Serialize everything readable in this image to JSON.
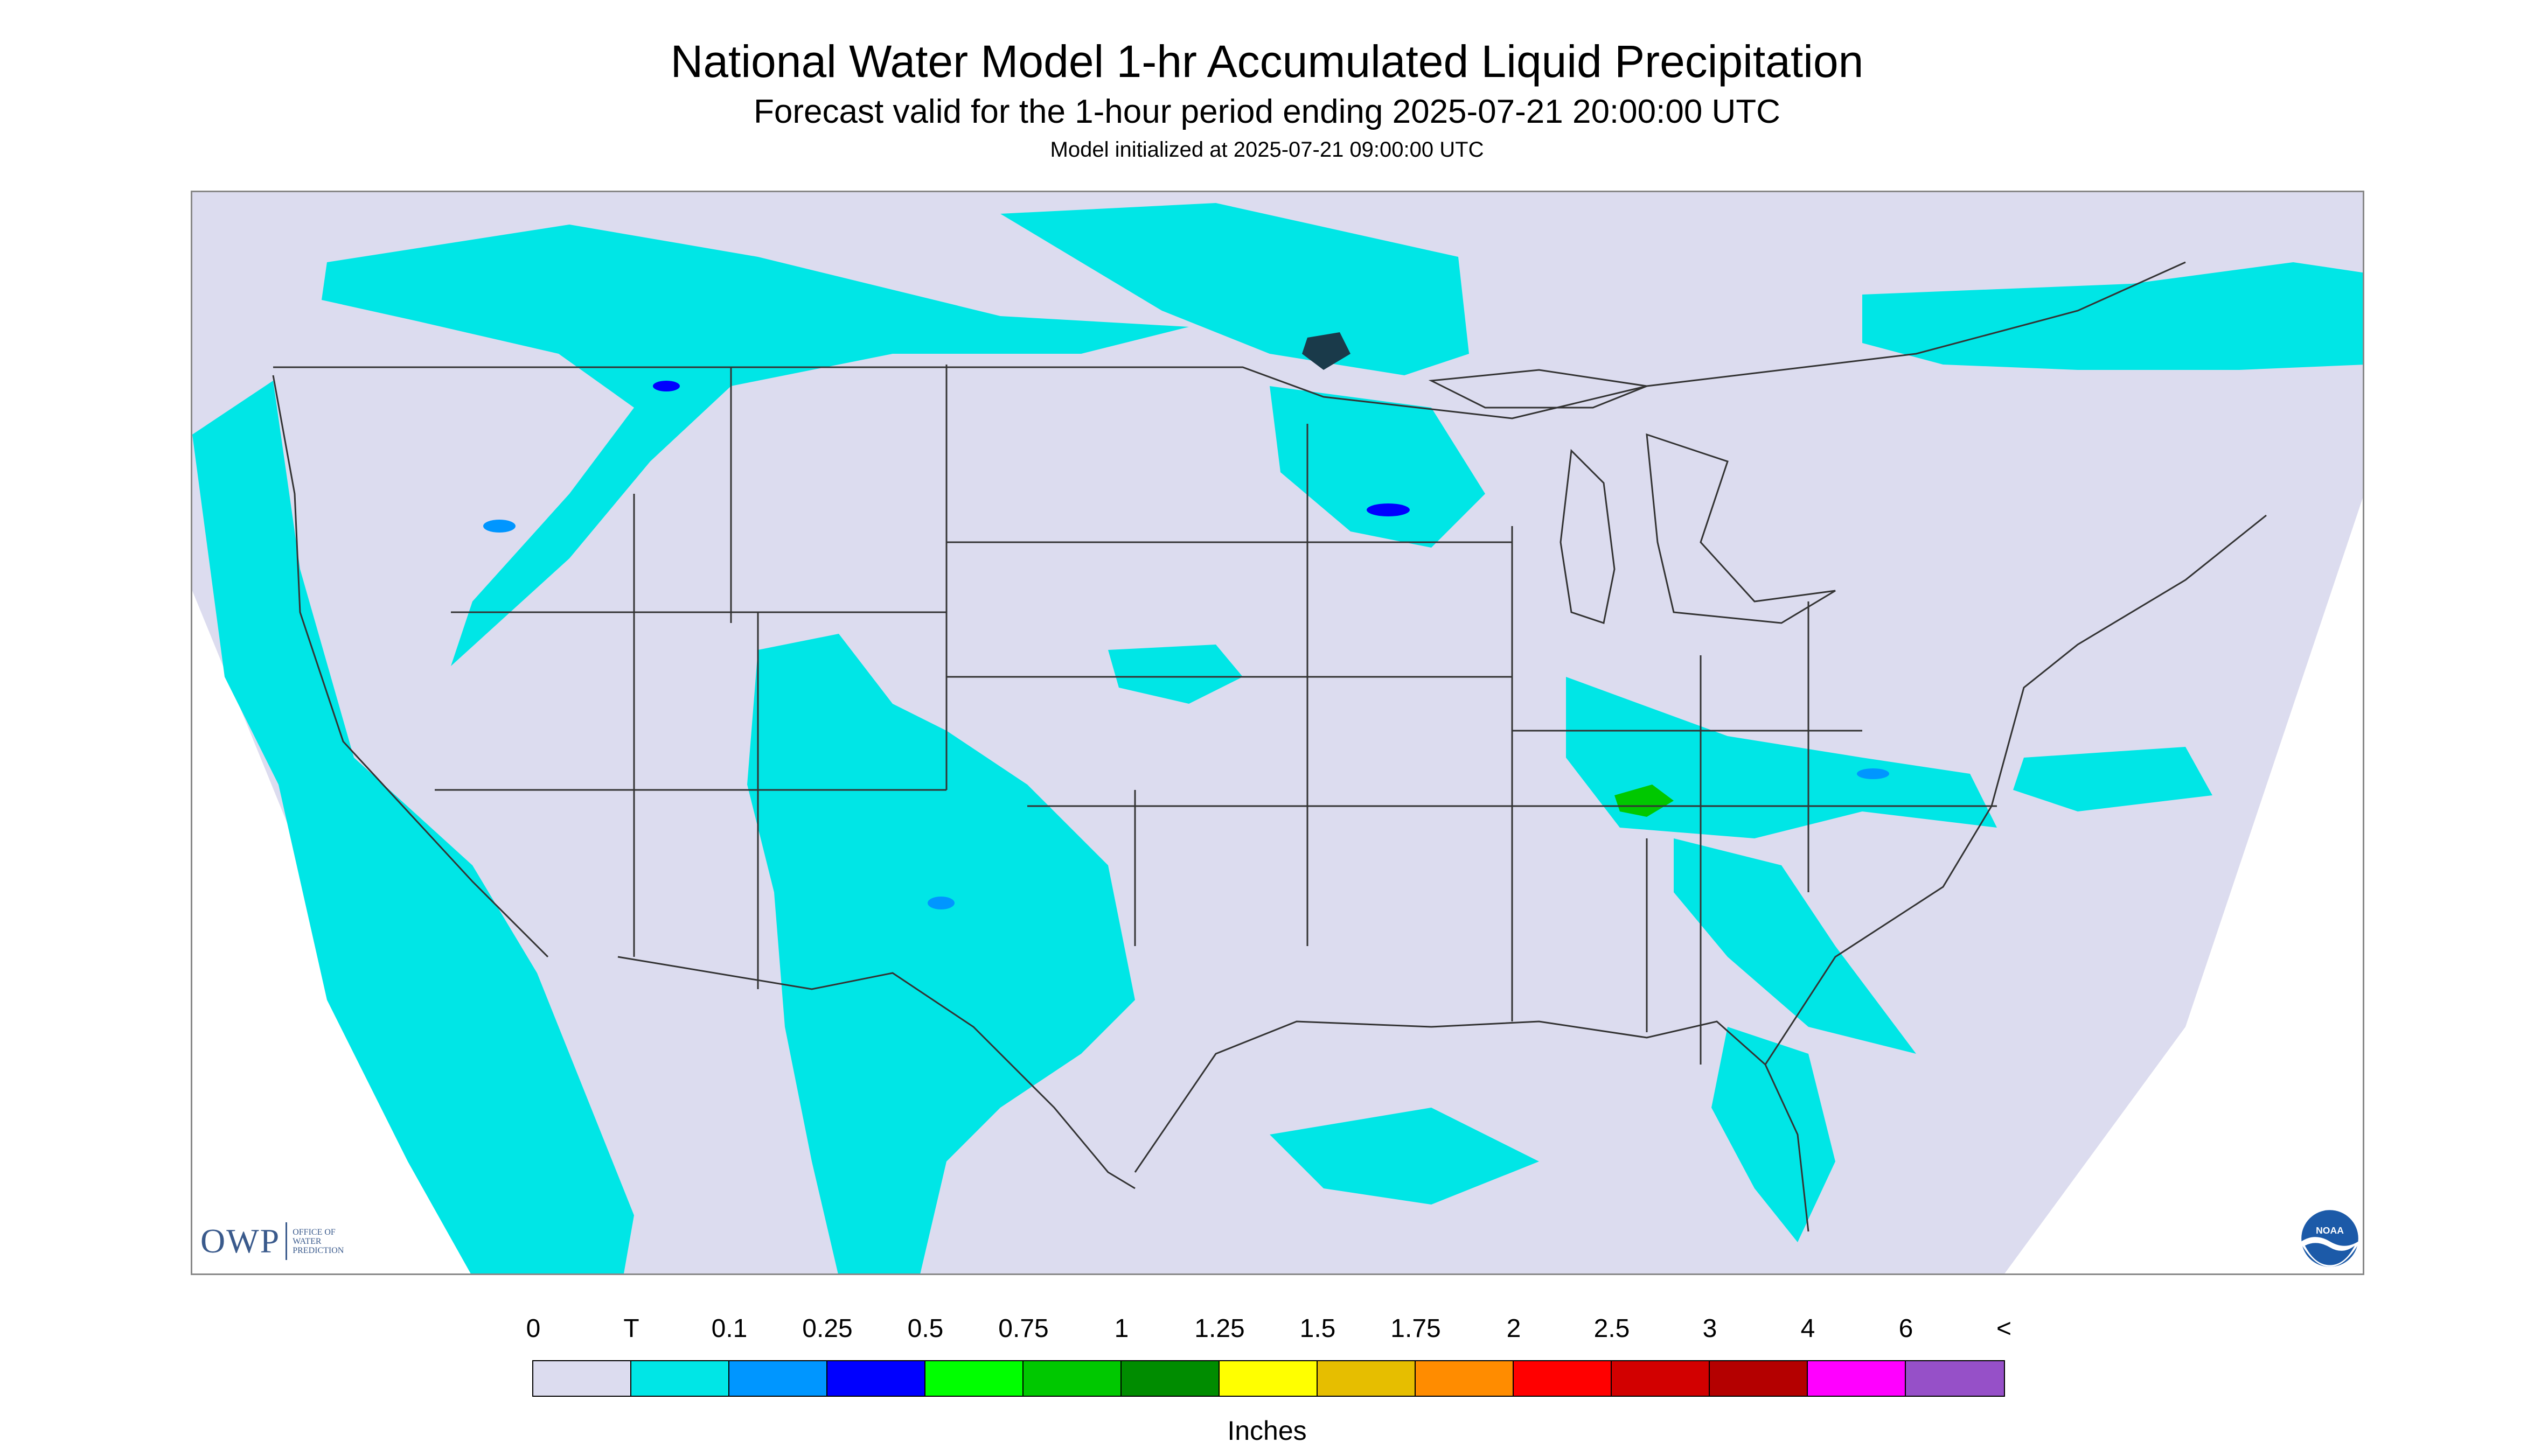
{
  "header": {
    "title": "National Water Model 1-hr Accumulated Liquid Precipitation",
    "subtitle": "Forecast valid for the 1-hour period ending 2025-07-21 20:00:00 UTC",
    "init_text": "Model initialized at 2025-07-21 09:00:00 UTC"
  },
  "map": {
    "background_color": "#dcdcef",
    "light_precip_color": "#00e6e6",
    "moderate_precip_color": "#0096ff",
    "heavy_precip_color": "#0000ff",
    "green_precip_color": "#00c800"
  },
  "logos": {
    "owp_text": "OWP",
    "owp_subtext": [
      "Office of",
      "Water",
      "Prediction"
    ],
    "noaa_text": "NOAA"
  },
  "legend": {
    "labels": [
      "0",
      "T",
      "0.1",
      "0.25",
      "0.5",
      "0.75",
      "1",
      "1.25",
      "1.5",
      "1.75",
      "2",
      "2.5",
      "3",
      "4",
      "6",
      "<"
    ],
    "colors": [
      "#dcdcef",
      "#00e6e6",
      "#0096ff",
      "#0000ff",
      "#00ff00",
      "#00c800",
      "#008c00",
      "#ffff00",
      "#e6be00",
      "#ff8c00",
      "#ff0000",
      "#d20000",
      "#b40000",
      "#ff00ff",
      "#9650c8"
    ],
    "units": "Inches"
  }
}
